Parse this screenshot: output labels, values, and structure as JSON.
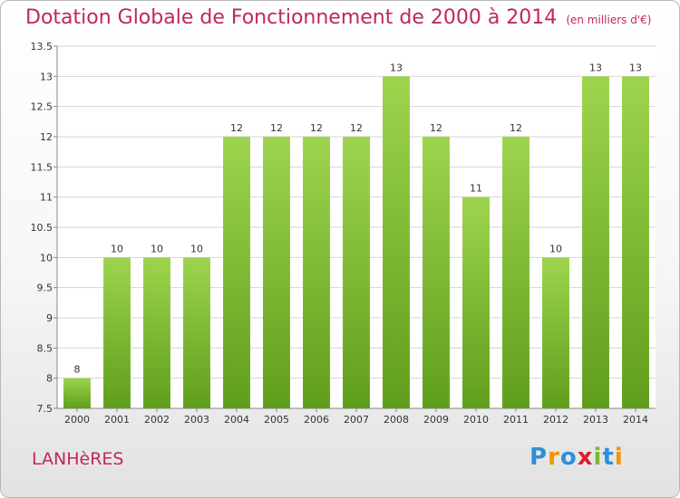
{
  "title": "Dotation Globale de Fonctionnement de 2000 à 2014",
  "unit": "(en milliers d'€)",
  "commune": "LANHèRES",
  "logo": {
    "text": "Proxiti",
    "letters": [
      "P",
      "r",
      "o",
      "x",
      "i",
      "t",
      "i"
    ],
    "colors": [
      "#2f8fd8",
      "#f29400",
      "#2f8fd8",
      "#d81f2a",
      "#7cb82f",
      "#2f8fd8",
      "#f29400"
    ]
  },
  "colors": {
    "bar_top": "#9ed44d",
    "bar_bottom": "#5f9e1c",
    "title": "#c0285a"
  },
  "chart_data": {
    "type": "bar",
    "categories": [
      "2000",
      "2001",
      "2002",
      "2003",
      "2004",
      "2005",
      "2006",
      "2007",
      "2008",
      "2009",
      "2010",
      "2011",
      "2012",
      "2013",
      "2014"
    ],
    "values": [
      8,
      10,
      10,
      10,
      12,
      12,
      12,
      12,
      13,
      12,
      11,
      12,
      10,
      13,
      13
    ],
    "value_labels": [
      "8",
      "10",
      "10",
      "10",
      "12",
      "12",
      "12",
      "12",
      "13",
      "12",
      "11",
      "12",
      "10",
      "13",
      "13"
    ],
    "yticks": [
      "7.5",
      "8",
      "8.5",
      "9",
      "9.5",
      "10",
      "10.5",
      "11",
      "11.5",
      "12",
      "12.5",
      "13",
      "13.5"
    ],
    "ylim": [
      7.5,
      13.5
    ],
    "grid": true
  }
}
